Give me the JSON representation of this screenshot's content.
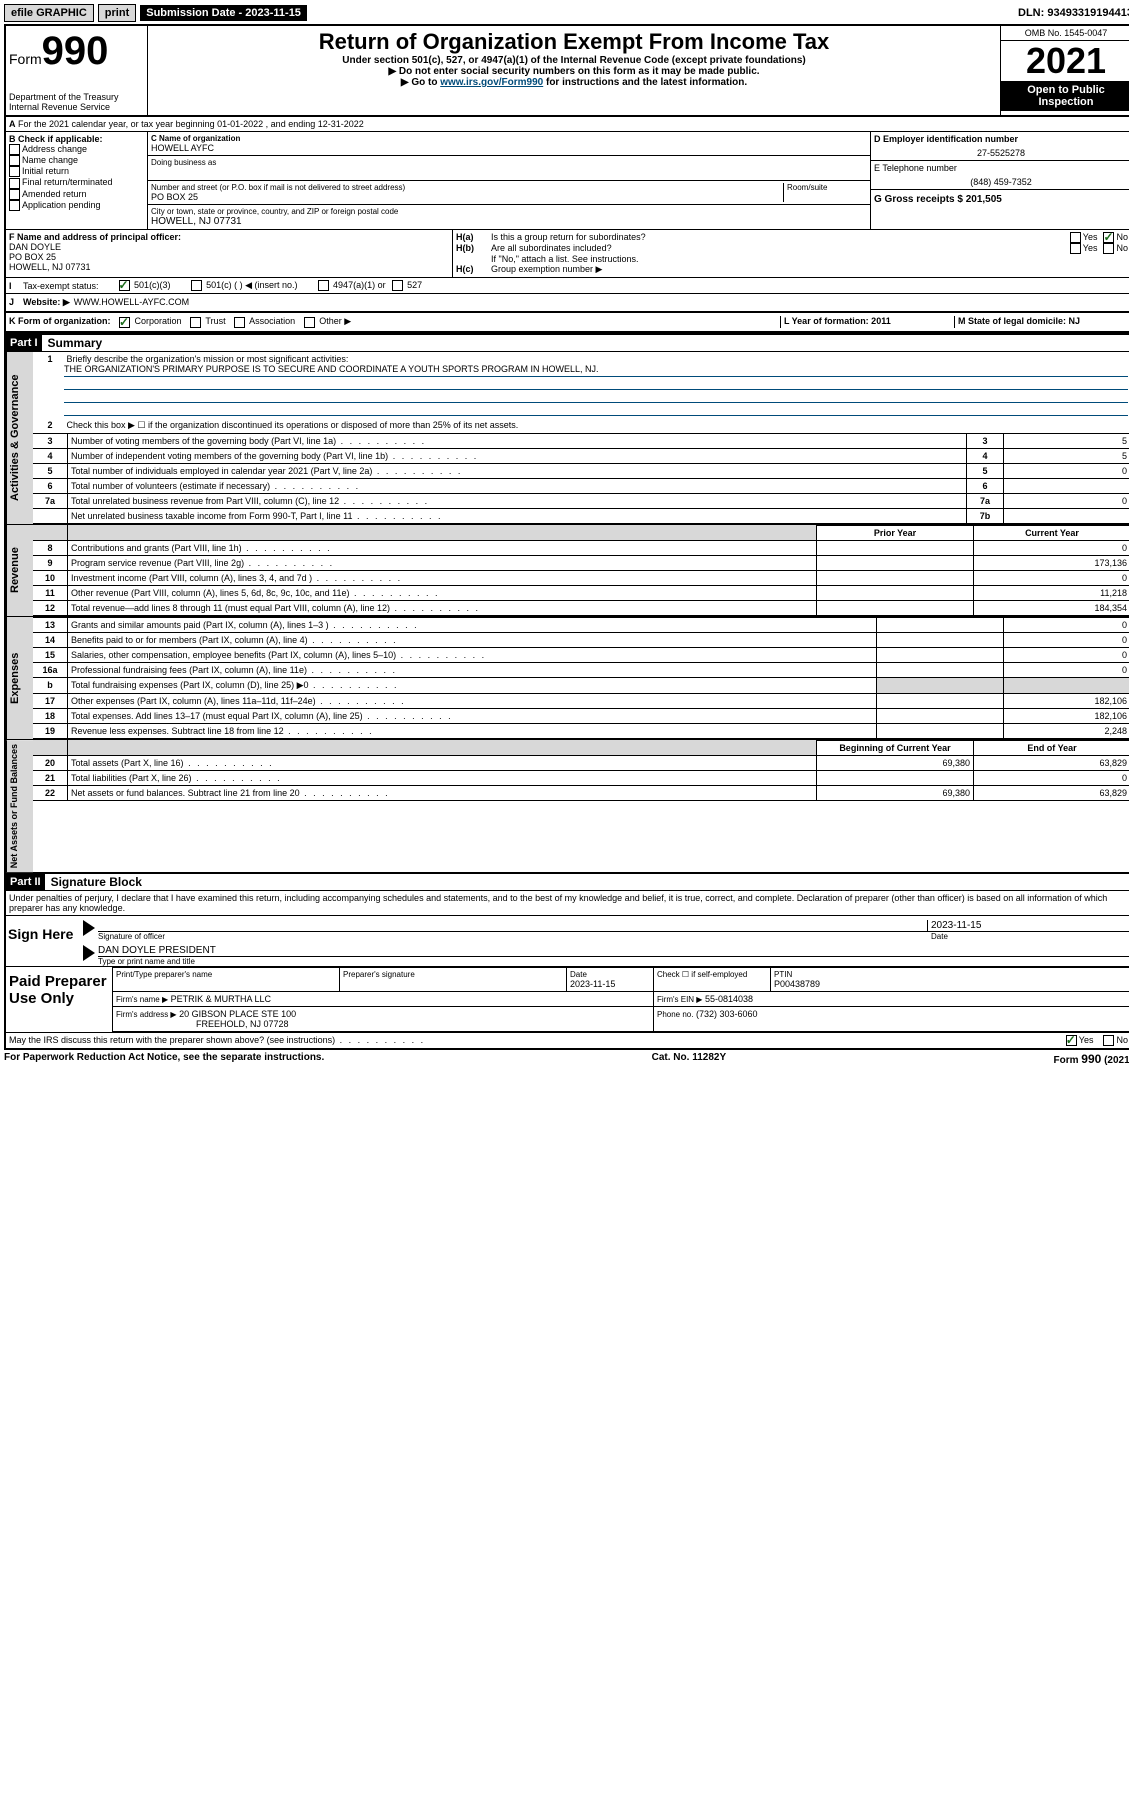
{
  "topbar": {
    "efile": "efile GRAPHIC",
    "print": "print",
    "sub_label": "Submission Date - 2023-11-15",
    "dln": "DLN: 93493319194413"
  },
  "header": {
    "form_prefix": "Form",
    "form_num": "990",
    "dept": "Department of the Treasury",
    "irs": "Internal Revenue Service",
    "title": "Return of Organization Exempt From Income Tax",
    "sub1": "Under section 501(c), 527, or 4947(a)(1) of the Internal Revenue Code (except private foundations)",
    "sub2": "▶ Do not enter social security numbers on this form as it may be made public.",
    "sub3_pre": "▶ Go to ",
    "sub3_link": "www.irs.gov/Form990",
    "sub3_post": " for instructions and the latest information.",
    "omb": "OMB No. 1545-0047",
    "year": "2021",
    "insp": "Open to Public Inspection"
  },
  "line_a": {
    "text": "For the 2021 calendar year, or tax year beginning 01-01-2022   , and ending 12-31-2022"
  },
  "box_b": {
    "title": "B Check if applicable:",
    "opts": [
      "Address change",
      "Name change",
      "Initial return",
      "Final return/terminated",
      "Amended return",
      "Application pending"
    ]
  },
  "box_c": {
    "label_name": "C Name of organization",
    "name": "HOWELL AYFC",
    "dba_label": "Doing business as",
    "addr_label": "Number and street (or P.O. box if mail is not delivered to street address)",
    "room_label": "Room/suite",
    "addr": "PO BOX 25",
    "city_label": "City or town, state or province, country, and ZIP or foreign postal code",
    "city": "HOWELL, NJ  07731"
  },
  "box_d": {
    "label": "D Employer identification number",
    "val": "27-5525278"
  },
  "box_e": {
    "label": "E Telephone number",
    "val": "(848) 459-7352"
  },
  "box_g": {
    "label": "G Gross receipts $ 201,505"
  },
  "box_f": {
    "label": "F Name and address of principal officer:",
    "name": "DAN DOYLE",
    "addr1": "PO BOX 25",
    "addr2": "HOWELL, NJ  07731"
  },
  "box_h": {
    "ha": "Is this a group return for subordinates?",
    "hb": "Are all subordinates included?",
    "hb_note": "If \"No,\" attach a list. See instructions.",
    "hc": "Group exemption number ▶"
  },
  "line_i": {
    "label": "Tax-exempt status:",
    "o1": "501(c)(3)",
    "o2": "501(c) (   ) ◀ (insert no.)",
    "o3": "4947(a)(1) or",
    "o4": "527"
  },
  "line_j": {
    "label": "Website: ▶",
    "val": "WWW.HOWELL-AYFC.COM"
  },
  "line_k": {
    "label": "K Form of organization:",
    "o1": "Corporation",
    "o2": "Trust",
    "o3": "Association",
    "o4": "Other ▶"
  },
  "line_l": {
    "label": "L Year of formation: 2011"
  },
  "line_m": {
    "label": "M State of legal domicile: NJ"
  },
  "part1": {
    "header": "Part I",
    "title": "Summary",
    "q1_label": "Briefly describe the organization's mission or most significant activities:",
    "q1_val": "THE ORGANIZATION'S PRIMARY PURPOSE IS TO SECURE AND COORDINATE A YOUTH SPORTS PROGRAM IN HOWELL, NJ.",
    "q2": "Check this box ▶ ☐  if the organization discontinued its operations or disposed of more than 25% of its net assets.",
    "rows_gov": [
      {
        "n": "3",
        "t": "Number of voting members of the governing body (Part VI, line 1a)",
        "r": "3",
        "v": "5"
      },
      {
        "n": "4",
        "t": "Number of independent voting members of the governing body (Part VI, line 1b)",
        "r": "4",
        "v": "5"
      },
      {
        "n": "5",
        "t": "Total number of individuals employed in calendar year 2021 (Part V, line 2a)",
        "r": "5",
        "v": "0"
      },
      {
        "n": "6",
        "t": "Total number of volunteers (estimate if necessary)",
        "r": "6",
        "v": ""
      },
      {
        "n": "7a",
        "t": "Total unrelated business revenue from Part VIII, column (C), line 12",
        "r": "7a",
        "v": "0"
      },
      {
        "n": "",
        "t": "Net unrelated business taxable income from Form 990-T, Part I, line 11",
        "r": "7b",
        "v": ""
      }
    ],
    "col_prior": "Prior Year",
    "col_curr": "Current Year",
    "rows_rev": [
      {
        "n": "8",
        "t": "Contributions and grants (Part VIII, line 1h)",
        "p": "",
        "c": "0"
      },
      {
        "n": "9",
        "t": "Program service revenue (Part VIII, line 2g)",
        "p": "",
        "c": "173,136"
      },
      {
        "n": "10",
        "t": "Investment income (Part VIII, column (A), lines 3, 4, and 7d )",
        "p": "",
        "c": "0"
      },
      {
        "n": "11",
        "t": "Other revenue (Part VIII, column (A), lines 5, 6d, 8c, 9c, 10c, and 11e)",
        "p": "",
        "c": "11,218"
      },
      {
        "n": "12",
        "t": "Total revenue—add lines 8 through 11 (must equal Part VIII, column (A), line 12)",
        "p": "",
        "c": "184,354"
      }
    ],
    "rows_exp": [
      {
        "n": "13",
        "t": "Grants and similar amounts paid (Part IX, column (A), lines 1–3 )",
        "p": "",
        "c": "0"
      },
      {
        "n": "14",
        "t": "Benefits paid to or for members (Part IX, column (A), line 4)",
        "p": "",
        "c": "0"
      },
      {
        "n": "15",
        "t": "Salaries, other compensation, employee benefits (Part IX, column (A), lines 5–10)",
        "p": "",
        "c": "0"
      },
      {
        "n": "16a",
        "t": "Professional fundraising fees (Part IX, column (A), line 11e)",
        "p": "",
        "c": "0"
      },
      {
        "n": "b",
        "t": "Total fundraising expenses (Part IX, column (D), line 25) ▶0",
        "p": "grey",
        "c": "grey"
      },
      {
        "n": "17",
        "t": "Other expenses (Part IX, column (A), lines 11a–11d, 11f–24e)",
        "p": "",
        "c": "182,106"
      },
      {
        "n": "18",
        "t": "Total expenses. Add lines 13–17 (must equal Part IX, column (A), line 25)",
        "p": "",
        "c": "182,106"
      },
      {
        "n": "19",
        "t": "Revenue less expenses. Subtract line 18 from line 12",
        "p": "",
        "c": "2,248"
      }
    ],
    "col_boy": "Beginning of Current Year",
    "col_eoy": "End of Year",
    "rows_net": [
      {
        "n": "20",
        "t": "Total assets (Part X, line 16)",
        "p": "69,380",
        "c": "63,829"
      },
      {
        "n": "21",
        "t": "Total liabilities (Part X, line 26)",
        "p": "",
        "c": "0"
      },
      {
        "n": "22",
        "t": "Net assets or fund balances. Subtract line 21 from line 20",
        "p": "69,380",
        "c": "63,829"
      }
    ],
    "vtab_gov": "Activities & Governance",
    "vtab_rev": "Revenue",
    "vtab_exp": "Expenses",
    "vtab_net": "Net Assets or Fund Balances"
  },
  "part2": {
    "header": "Part II",
    "title": "Signature Block",
    "decl": "Under penalties of perjury, I declare that I have examined this return, including accompanying schedules and statements, and to the best of my knowledge and belief, it is true, correct, and complete. Declaration of preparer (other than officer) is based on all information of which preparer has any knowledge.",
    "sign_here": "Sign Here",
    "sig_officer": "Signature of officer",
    "sig_date": "Date",
    "sig_date_val": "2023-11-15",
    "officer_name": "DAN DOYLE  PRESIDENT",
    "officer_label": "Type or print name and title",
    "paid_prep": "Paid Preparer Use Only",
    "prep_name_label": "Print/Type preparer's name",
    "prep_sig_label": "Preparer's signature",
    "prep_date_label": "Date",
    "prep_date_val": "2023-11-15",
    "prep_self": "Check ☐ if self-employed",
    "prep_ptin_label": "PTIN",
    "prep_ptin": "P00438789",
    "firm_name_label": "Firm's name    ▶",
    "firm_name": "PETRIK & MURTHA LLC",
    "firm_ein_label": "Firm's EIN ▶",
    "firm_ein": "55-0814038",
    "firm_addr_label": "Firm's address ▶",
    "firm_addr1": "20 GIBSON PLACE STE 100",
    "firm_addr2": "FREEHOLD, NJ  07728",
    "firm_phone_label": "Phone no.",
    "firm_phone": "(732) 303-6060",
    "discuss": "May the IRS discuss this return with the preparer shown above? (see instructions)"
  },
  "footer": {
    "left": "For Paperwork Reduction Act Notice, see the separate instructions.",
    "mid": "Cat. No. 11282Y",
    "right": "Form 990 (2021)"
  },
  "yes": "Yes",
  "no": "No",
  "ha_label": "H(a)",
  "hb_label": "H(b)",
  "hc_label": "H(c)",
  "line_i_label": "I",
  "line_j_label": "J",
  "line_a_label": "A"
}
